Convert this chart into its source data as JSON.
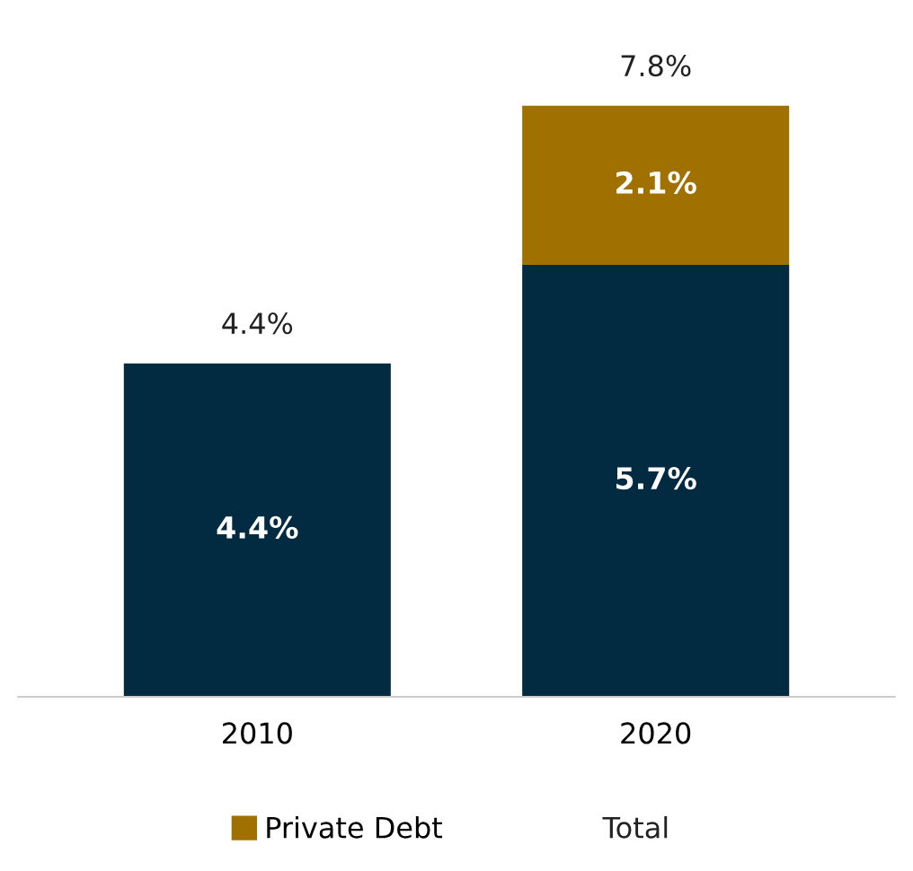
{
  "chart_data": {
    "type": "bar",
    "stacked": true,
    "categories": [
      "2010",
      "2020"
    ],
    "series": [
      {
        "color": "#022a40",
        "values": [
          4.4,
          5.7
        ],
        "value_labels": [
          "4.4%",
          "5.7%"
        ]
      },
      {
        "name": "Private Debt",
        "color": "#a07000",
        "values": [
          null,
          2.1
        ],
        "value_labels": [
          null,
          "2.1%"
        ]
      }
    ],
    "totals": [
      "4.4%",
      "7.8%"
    ],
    "annotations": [
      "Total"
    ],
    "legend": "bottom",
    "grid": false,
    "tick_labels": "x"
  }
}
